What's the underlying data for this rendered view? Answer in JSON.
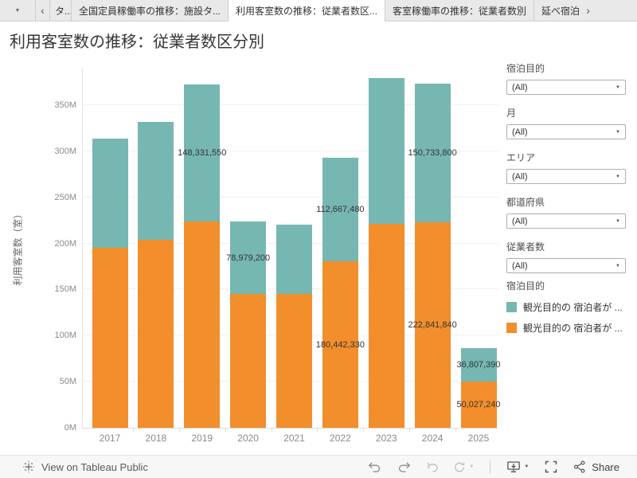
{
  "tab_bar": {
    "sheet_dropdown_icon": "▼",
    "scroll_left": "‹",
    "scroll_right": "›",
    "tabs": [
      {
        "label": "タ...",
        "active": false
      },
      {
        "label": "全国定員稼働率の推移：施設タ...",
        "active": false
      },
      {
        "label": "利用客室数の推移：従業者数区...",
        "active": true
      },
      {
        "label": "客室稼働率の推移：従業者数別",
        "active": false
      },
      {
        "label": "延べ宿泊",
        "active": false
      }
    ]
  },
  "title": "利用客室数の推移：従業者数区分別",
  "chart_data": {
    "type": "bar",
    "stacked": true,
    "title": "利用客室数の推移：従業者数区分別",
    "xlabel": "",
    "ylabel": "利用客室数（室）",
    "categories": [
      "2017",
      "2018",
      "2019",
      "2020",
      "2021",
      "2022",
      "2023",
      "2024",
      "2025"
    ],
    "y_ticks": [
      "0M",
      "50M",
      "100M",
      "150M",
      "200M",
      "250M",
      "300M",
      "350M"
    ],
    "ylim_million": [
      0,
      350
    ],
    "grid": true,
    "legend_position": "right",
    "series": [
      {
        "name": "観光目的の 宿泊者が ...",
        "color": "#76b7b2",
        "stack_order": "top",
        "values_million": [
          119,
          128,
          148.3,
          79.0,
          75,
          112.7,
          158,
          150.7,
          36.8
        ],
        "labels": [
          "",
          "",
          "148,331,550",
          "78,979,200",
          "",
          "112,667,480",
          "",
          "150,733,800",
          "36,807,390"
        ]
      },
      {
        "name": "観光目的の 宿泊者が ...",
        "color": "#f28e2b",
        "stack_order": "bottom",
        "values_million": [
          195,
          204,
          224,
          145,
          145,
          180.4,
          221,
          222.8,
          50.0
        ],
        "labels": [
          "",
          "",
          "",
          "",
          "",
          "180,442,330",
          "",
          "222,841,840",
          "50,027,240"
        ]
      }
    ]
  },
  "filters": [
    {
      "label": "宿泊目的",
      "value": "(All)"
    },
    {
      "label": "月",
      "value": "(All)"
    },
    {
      "label": "エリア",
      "value": "(All)"
    },
    {
      "label": "都道府県",
      "value": "(All)"
    },
    {
      "label": "従業者数",
      "value": "(All)"
    }
  ],
  "legend": {
    "title": "宿泊目的",
    "items": [
      {
        "label": "観光目的の 宿泊者が ...",
        "color": "#76b7b2"
      },
      {
        "label": "観光目的の 宿泊者が ...",
        "color": "#f28e2b"
      }
    ]
  },
  "toolbar": {
    "brand_label": "View on Tableau Public",
    "share_label": "Share"
  },
  "colors": {
    "teal": "#76b7b2",
    "orange": "#f28e2b",
    "axis_text": "#8a8a8a",
    "mark_label_text": "#333333",
    "tab_bar_bg": "#e9e9e9",
    "active_tab_bg": "#ffffff",
    "toolbar_bg": "#f7f7f7"
  }
}
